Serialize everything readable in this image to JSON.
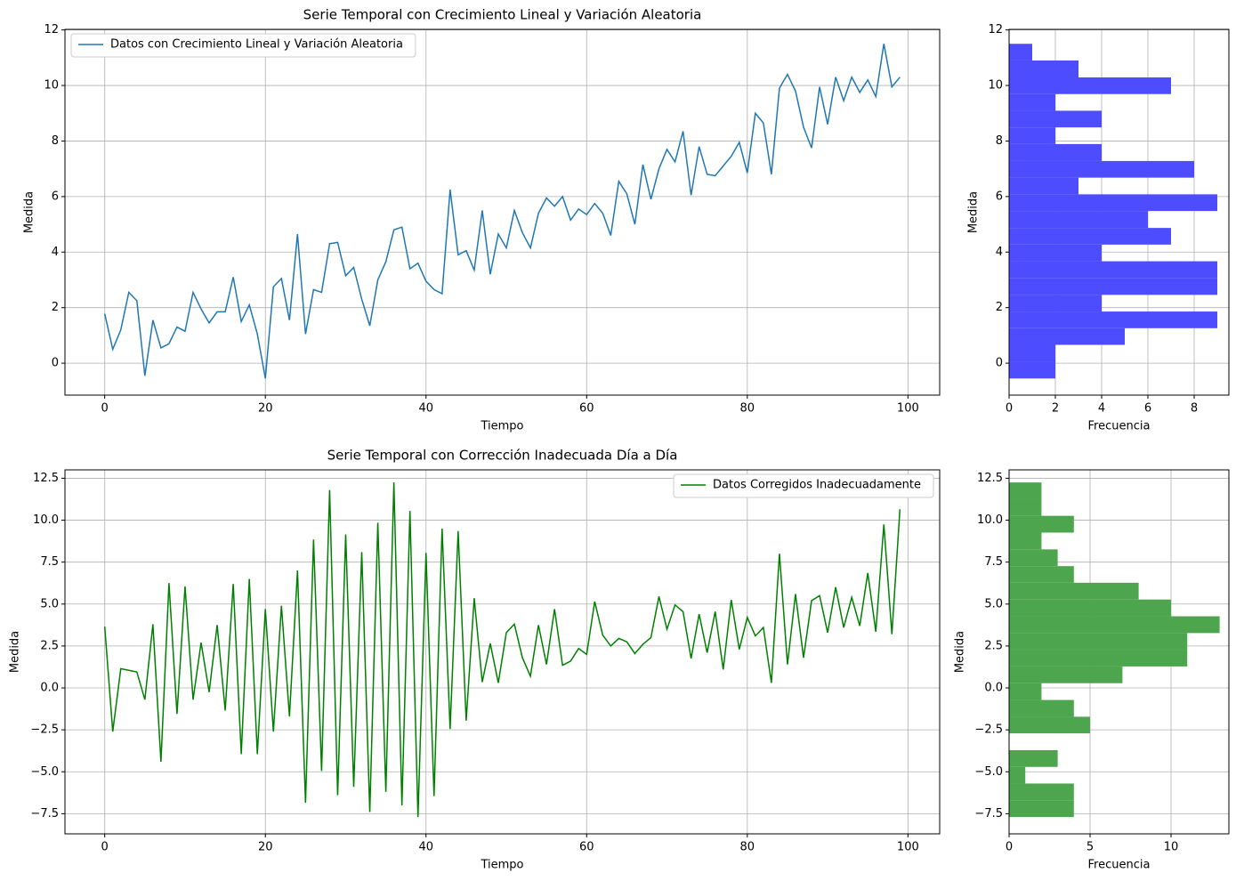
{
  "chart_data": [
    {
      "type": "line",
      "title": "Serie Temporal con Crecimiento Lineal y Variación Aleatoria",
      "xlabel": "Tiempo",
      "ylabel": "Medida",
      "x": [
        0,
        1,
        2,
        3,
        4,
        5,
        6,
        7,
        8,
        9,
        10,
        11,
        12,
        13,
        14,
        15,
        16,
        17,
        18,
        19,
        20,
        21,
        22,
        23,
        24,
        25,
        26,
        27,
        28,
        29,
        30,
        31,
        32,
        33,
        34,
        35,
        36,
        37,
        38,
        39,
        40,
        41,
        42,
        43,
        44,
        45,
        46,
        47,
        48,
        49,
        50,
        51,
        52,
        53,
        54,
        55,
        56,
        57,
        58,
        59,
        60,
        61,
        62,
        63,
        64,
        65,
        66,
        67,
        68,
        69,
        70,
        71,
        72,
        73,
        74,
        75,
        76,
        77,
        78,
        79,
        80,
        81,
        82,
        83,
        84,
        85,
        86,
        87,
        88,
        89,
        90,
        91,
        92,
        93,
        94,
        95,
        96,
        97,
        98,
        99
      ],
      "series": [
        {
          "name": "Datos con Crecimiento Lineal y Variación Aleatoria",
          "color": "#1f77b4",
          "values": [
            1.78,
            0.5,
            1.2,
            2.55,
            2.25,
            -0.45,
            1.55,
            0.55,
            0.7,
            1.3,
            1.15,
            2.55,
            1.95,
            1.45,
            1.85,
            1.85,
            3.1,
            1.5,
            2.1,
            1.05,
            -0.55,
            2.75,
            3.05,
            1.55,
            4.65,
            1.05,
            2.65,
            2.55,
            4.3,
            4.35,
            3.15,
            3.45,
            2.3,
            1.35,
            3.0,
            3.65,
            4.8,
            4.9,
            3.4,
            3.6,
            2.95,
            2.65,
            2.5,
            6.25,
            3.9,
            4.05,
            3.35,
            5.5,
            3.2,
            4.65,
            4.15,
            5.5,
            4.7,
            4.15,
            5.4,
            5.95,
            5.65,
            6.0,
            5.15,
            5.55,
            5.35,
            5.75,
            5.4,
            4.6,
            6.55,
            6.1,
            5.0,
            7.15,
            5.9,
            7.0,
            7.7,
            7.25,
            8.35,
            6.05,
            7.8,
            6.8,
            6.75,
            7.1,
            7.45,
            7.95,
            6.85,
            9.0,
            8.65,
            6.8,
            9.9,
            10.4,
            9.8,
            8.5,
            7.75,
            9.95,
            8.6,
            10.3,
            9.45,
            10.3,
            9.75,
            10.2,
            9.6,
            11.5,
            9.95,
            10.3
          ]
        }
      ],
      "xlim": [
        -4.95,
        103.95
      ],
      "xticks": [
        0,
        20,
        40,
        60,
        80,
        100
      ],
      "ylim": [
        -1.15,
        12.02
      ],
      "yticks": [
        0,
        2,
        4,
        6,
        8,
        10,
        12
      ],
      "grid": true,
      "legend": "upper left"
    },
    {
      "type": "histogram",
      "orientation": "horizontal",
      "xlabel": "Frecuencia",
      "ylabel": "Medida",
      "color": "#4d4dff",
      "bins": [
        -0.55,
        0.05,
        0.66,
        1.26,
        1.86,
        2.46,
        3.07,
        3.67,
        4.27,
        4.87,
        5.48,
        6.08,
        6.68,
        7.28,
        7.89,
        8.49,
        9.09,
        9.69,
        10.29,
        10.9,
        11.5
      ],
      "values": [
        2,
        2,
        5,
        9,
        4,
        9,
        9,
        4,
        7,
        6,
        9,
        3,
        8,
        4,
        2,
        4,
        2,
        7,
        3,
        1
      ],
      "xlim": [
        0,
        9.5
      ],
      "xticks": [
        0,
        2,
        4,
        6,
        8
      ],
      "ylim": [
        -1.15,
        12.02
      ],
      "yticks": [
        0,
        2,
        4,
        6,
        8,
        10,
        12
      ],
      "grid": true
    },
    {
      "type": "line",
      "title": "Serie Temporal con Corrección Inadecuada Día a Día",
      "xlabel": "Tiempo",
      "ylabel": "Medida",
      "x": [
        0,
        1,
        2,
        3,
        4,
        5,
        6,
        7,
        8,
        9,
        10,
        11,
        12,
        13,
        14,
        15,
        16,
        17,
        18,
        19,
        20,
        21,
        22,
        23,
        24,
        25,
        26,
        27,
        28,
        29,
        30,
        31,
        32,
        33,
        34,
        35,
        36,
        37,
        38,
        39,
        40,
        41,
        42,
        43,
        44,
        45,
        46,
        47,
        48,
        49,
        50,
        51,
        52,
        53,
        54,
        55,
        56,
        57,
        58,
        59,
        60,
        61,
        62,
        63,
        64,
        65,
        66,
        67,
        68,
        69,
        70,
        71,
        72,
        73,
        74,
        75,
        76,
        77,
        78,
        79,
        80,
        81,
        82,
        83,
        84,
        85,
        86,
        87,
        88,
        89,
        90,
        91,
        92,
        93,
        94,
        95,
        96,
        97,
        98,
        99
      ],
      "series": [
        {
          "name": "Datos Corregidos Inadecuadamente",
          "color": "#008000",
          "values": [
            3.65,
            -2.6,
            1.15,
            1.05,
            0.95,
            -0.7,
            3.8,
            -4.4,
            6.25,
            -1.55,
            6.05,
            -0.7,
            2.7,
            -0.25,
            3.75,
            -1.35,
            6.2,
            -3.95,
            6.5,
            -3.95,
            4.7,
            -2.6,
            4.9,
            -1.7,
            7.0,
            -6.85,
            8.85,
            -4.95,
            11.8,
            -6.4,
            9.15,
            -5.9,
            8.1,
            -7.4,
            9.85,
            -6.2,
            12.25,
            -7.0,
            10.55,
            -7.7,
            8.05,
            -6.45,
            9.5,
            -2.45,
            9.35,
            -1.95,
            5.35,
            0.35,
            2.65,
            0.3,
            3.3,
            3.8,
            1.8,
            0.7,
            3.75,
            1.4,
            4.7,
            1.35,
            1.6,
            2.35,
            2.0,
            5.15,
            3.15,
            2.5,
            2.95,
            2.75,
            2.05,
            2.6,
            3.0,
            5.45,
            3.5,
            4.95,
            4.55,
            1.75,
            4.4,
            2.1,
            4.55,
            1.1,
            5.25,
            2.3,
            4.2,
            3.1,
            3.6,
            0.3,
            8.0,
            1.4,
            5.6,
            1.8,
            5.2,
            5.5,
            3.3,
            6.0,
            3.6,
            5.4,
            3.7,
            6.85,
            3.35,
            9.75,
            3.2,
            10.65
          ]
        }
      ],
      "xlim": [
        -4.95,
        103.95
      ],
      "xticks": [
        0,
        20,
        40,
        60,
        80,
        100
      ],
      "ylim": [
        -8.7,
        13.0
      ],
      "yticks": [
        {
          "value": -7.5,
          "label": "−7.5"
        },
        {
          "value": -5,
          "label": "−5.0"
        },
        {
          "value": -2.5,
          "label": "−2.5"
        },
        {
          "value": 0,
          "label": "0.0"
        },
        {
          "value": 2.5,
          "label": "2.5"
        },
        {
          "value": 5,
          "label": "5.0"
        },
        {
          "value": 7.5,
          "label": "7.5"
        },
        {
          "value": 10,
          "label": "10.0"
        },
        {
          "value": 12.5,
          "label": "12.5"
        }
      ],
      "grid": true,
      "legend": "upper right"
    },
    {
      "type": "histogram",
      "orientation": "horizontal",
      "xlabel": "Frecuencia",
      "ylabel": "Medida",
      "color": "#4da64d",
      "bins": [
        -7.7,
        -6.7,
        -5.7,
        -4.71,
        -3.71,
        -2.71,
        -1.72,
        -0.72,
        0.28,
        1.28,
        2.28,
        3.27,
        4.27,
        5.27,
        6.27,
        7.26,
        8.26,
        9.26,
        10.26,
        11.25,
        12.25
      ],
      "values": [
        4,
        4,
        1,
        3,
        0,
        5,
        4,
        2,
        7,
        11,
        11,
        13,
        10,
        8,
        4,
        3,
        2,
        4,
        2,
        2
      ],
      "xlim": [
        0,
        13.57
      ],
      "xticks": [
        0,
        5,
        10
      ],
      "ylim": [
        -8.7,
        13.0
      ],
      "yticks": [
        {
          "value": -7.5,
          "label": "−7.5"
        },
        {
          "value": -5,
          "label": "−5.0"
        },
        {
          "value": -2.5,
          "label": "−2.5"
        },
        {
          "value": 0,
          "label": "0.0"
        },
        {
          "value": 2.5,
          "label": "2.5"
        },
        {
          "value": 5,
          "label": "5.0"
        },
        {
          "value": 7.5,
          "label": "7.5"
        },
        {
          "value": 10,
          "label": "10.0"
        },
        {
          "value": 12.5,
          "label": "12.5"
        }
      ],
      "grid": true
    }
  ]
}
